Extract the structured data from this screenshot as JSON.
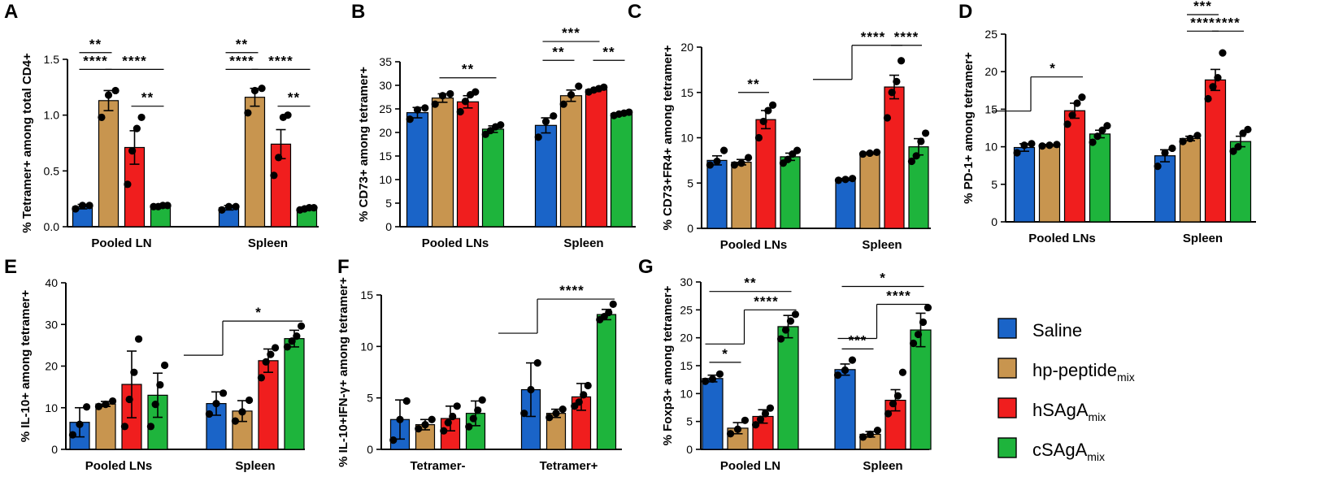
{
  "colors": {
    "Saline": "#1a64c8",
    "hp-peptide_mix": "#c8954f",
    "hSAgA_mix": "#f01e1e",
    "cSAgA_mix": "#1eb43c"
  },
  "legend": [
    {
      "name": "Saline",
      "main": "Saline",
      "sub": ""
    },
    {
      "name": "hp-peptide_mix",
      "main": "hp-peptide",
      "sub": "mix"
    },
    {
      "name": "hSAgA_mix",
      "main": "hSAgA",
      "sub": "mix"
    },
    {
      "name": "cSAgA_mix",
      "main": "cSAgA",
      "sub": "mix"
    }
  ],
  "chart_data": [
    {
      "panel": "A",
      "type": "bar",
      "ylabel": "% Tetramer+ among total CD4+",
      "ylim": [
        0,
        1.5
      ],
      "yticks": [
        0.0,
        0.5,
        1.0,
        1.5
      ],
      "ytick_labels": [
        "0.0",
        "0.5",
        "1.0",
        "1.5"
      ],
      "groups": [
        "Pooled LN",
        "Spleen"
      ],
      "series": [
        {
          "name": "Saline",
          "values": [
            0.18,
            0.17
          ],
          "errors": [
            0.02,
            0.02
          ],
          "points": [
            [
              0.16,
              0.19,
              0.19
            ],
            [
              0.15,
              0.18,
              0.18
            ]
          ]
        },
        {
          "name": "hp-peptide_mix",
          "values": [
            1.13,
            1.16
          ],
          "errors": [
            0.09,
            0.08
          ],
          "points": [
            [
              0.98,
              1.18,
              1.22
            ],
            [
              1.02,
              1.22,
              1.24
            ]
          ]
        },
        {
          "name": "hSAgA_mix",
          "values": [
            0.71,
            0.74
          ],
          "errors": [
            0.15,
            0.13
          ],
          "points": [
            [
              0.38,
              0.68,
              0.88,
              0.98
            ],
            [
              0.46,
              0.62,
              0.98,
              1.0
            ]
          ]
        },
        {
          "name": "cSAgA_mix",
          "values": [
            0.18,
            0.16
          ],
          "errors": [
            0.01,
            0.01
          ],
          "points": [
            [
              0.18,
              0.18,
              0.19,
              0.19
            ],
            [
              0.15,
              0.16,
              0.17,
              0.17
            ]
          ]
        }
      ],
      "significance": [
        {
          "label": "**",
          "group": 0,
          "from": 0,
          "to": 1,
          "y": 1.56
        },
        {
          "label": "****",
          "group": 0,
          "from": 0,
          "to": 1,
          "y": 1.41
        },
        {
          "label": "****",
          "group": 0,
          "from": 1,
          "to": 3,
          "y": 1.41
        },
        {
          "label": "**",
          "group": 0,
          "from": 2,
          "to": 3,
          "y": 1.08
        },
        {
          "label": "**",
          "group": 1,
          "from": 0,
          "to": 1,
          "y": 1.56
        },
        {
          "label": "****",
          "group": 1,
          "from": 0,
          "to": 1,
          "y": 1.41
        },
        {
          "label": "****",
          "group": 1,
          "from": 1,
          "to": 3,
          "y": 1.41
        },
        {
          "label": "**",
          "group": 1,
          "from": 2,
          "to": 3,
          "y": 1.08
        }
      ]
    },
    {
      "panel": "B",
      "type": "bar",
      "ylabel": "% CD73+ among tetramer+",
      "ylim": [
        0,
        35
      ],
      "yticks": [
        0,
        5,
        10,
        15,
        20,
        25,
        30,
        35
      ],
      "ytick_labels": [
        "0",
        "5",
        "10",
        "15",
        "20",
        "25",
        "30",
        "35"
      ],
      "groups": [
        "Pooled LNs",
        "Spleen"
      ],
      "series": [
        {
          "name": "Saline",
          "values": [
            24.2,
            21.5
          ],
          "errors": [
            1.1,
            1.6
          ],
          "points": [
            [
              22.8,
              24.8,
              25.2
            ],
            [
              19.0,
              22.3,
              23.5
            ]
          ]
        },
        {
          "name": "hp-peptide_mix",
          "values": [
            27.3,
            27.8
          ],
          "errors": [
            0.9,
            1.2
          ],
          "points": [
            [
              26.0,
              27.8,
              28.2
            ],
            [
              26.0,
              28.0,
              29.8
            ]
          ]
        },
        {
          "name": "hSAgA_mix",
          "values": [
            26.5,
            29.1
          ],
          "errors": [
            1.3,
            0.4
          ],
          "points": [
            [
              24.4,
              26.6,
              28.0,
              28.6
            ],
            [
              28.6,
              29.0,
              29.3,
              29.6
            ]
          ]
        },
        {
          "name": "cSAgA_mix",
          "values": [
            20.7,
            24.0
          ],
          "errors": [
            0.7,
            0.3
          ],
          "points": [
            [
              19.6,
              20.4,
              21.2,
              21.6
            ],
            [
              23.6,
              23.9,
              24.1,
              24.3
            ]
          ]
        }
      ],
      "significance": [
        {
          "label": "**",
          "group": 0,
          "from": 1,
          "to": 3,
          "y": 31.6
        },
        {
          "label": "***",
          "group": 1,
          "from": 0,
          "to": 2,
          "y": 39.3
        },
        {
          "label": "**",
          "group": 1,
          "from": 0,
          "to": 1,
          "y": 35.3
        },
        {
          "label": "**",
          "group": 1,
          "from": 2,
          "to": 3,
          "y": 35.3
        }
      ]
    },
    {
      "panel": "C",
      "type": "bar",
      "ylabel": "% CD73+FR4+ among tetramer+",
      "ylim": [
        0,
        20
      ],
      "yticks": [
        0,
        5,
        10,
        15,
        20
      ],
      "ytick_labels": [
        "0",
        "5",
        "10",
        "15",
        "20"
      ],
      "groups": [
        "Pooled LNs",
        "Spleen"
      ],
      "series": [
        {
          "name": "Saline",
          "values": [
            7.5,
            5.4
          ],
          "errors": [
            0.5,
            0.1
          ],
          "points": [
            [
              7.0,
              7.4,
              8.6
            ],
            [
              5.3,
              5.4,
              5.5
            ]
          ]
        },
        {
          "name": "hp-peptide_mix",
          "values": [
            7.3,
            8.3
          ],
          "errors": [
            0.3,
            0.1
          ],
          "points": [
            [
              7.0,
              7.2,
              7.8
            ],
            [
              8.2,
              8.3,
              8.4
            ]
          ]
        },
        {
          "name": "hSAgA_mix",
          "values": [
            12.0,
            15.6
          ],
          "errors": [
            1.0,
            1.3
          ],
          "points": [
            [
              10.0,
              11.8,
              13.0,
              13.6
            ],
            [
              12.2,
              15.0,
              16.2,
              18.5
            ]
          ]
        },
        {
          "name": "cSAgA_mix",
          "values": [
            7.9,
            9.0
          ],
          "errors": [
            0.4,
            0.9
          ],
          "points": [
            [
              7.2,
              7.6,
              8.2,
              8.6
            ],
            [
              7.4,
              8.0,
              9.6,
              10.5
            ]
          ]
        }
      ],
      "significance": [
        {
          "label": "**",
          "group": 0,
          "from": 1,
          "to": 2,
          "y": 15.0
        },
        {
          "label": "****",
          "group": 1,
          "from": 0,
          "to": 2,
          "y": 20.2,
          "style": "bracket"
        },
        {
          "label": "****",
          "group": 1,
          "from": 2,
          "to": 3,
          "y": 20.2
        }
      ]
    },
    {
      "panel": "D",
      "type": "bar",
      "ylabel": "% PD-1+ among tetramer+",
      "ylim": [
        0,
        25
      ],
      "yticks": [
        0,
        5,
        10,
        15,
        20,
        25
      ],
      "ytick_labels": [
        "0",
        "5",
        "10",
        "15",
        "20",
        "25"
      ],
      "groups": [
        "Pooled LNs",
        "Spleen"
      ],
      "series": [
        {
          "name": "Saline",
          "values": [
            9.9,
            8.8
          ],
          "errors": [
            0.5,
            0.8
          ],
          "points": [
            [
              9.2,
              10.2,
              10.4
            ],
            [
              7.4,
              9.2,
              9.8
            ]
          ]
        },
        {
          "name": "hp-peptide_mix",
          "values": [
            10.2,
            11.1
          ],
          "errors": [
            0.1,
            0.3
          ],
          "points": [
            [
              10.1,
              10.2,
              10.3
            ],
            [
              10.7,
              11.1,
              11.5
            ]
          ]
        },
        {
          "name": "hSAgA_mix",
          "values": [
            14.8,
            18.9
          ],
          "errors": [
            1.0,
            1.4
          ],
          "points": [
            [
              13.0,
              14.2,
              15.8,
              16.6
            ],
            [
              16.4,
              18.0,
              19.2,
              22.5
            ]
          ]
        },
        {
          "name": "cSAgA_mix",
          "values": [
            11.7,
            10.7
          ],
          "errors": [
            0.5,
            0.7
          ],
          "points": [
            [
              10.6,
              11.4,
              12.2,
              12.8
            ],
            [
              9.4,
              10.0,
              11.8,
              12.3
            ]
          ]
        }
      ],
      "significance": [
        {
          "label": "*",
          "group": 0,
          "from": 0,
          "to": 2,
          "y": 19.3,
          "style": "bracket"
        },
        {
          "label": "***",
          "group": 1,
          "from": 1,
          "to": 2,
          "y": 27.6
        },
        {
          "label": "****",
          "group": 1,
          "from": 1,
          "to": 2,
          "y": 25.4
        },
        {
          "label": "****",
          "group": 1,
          "from": 2,
          "to": 3,
          "y": 25.4
        }
      ]
    },
    {
      "panel": "E",
      "type": "bar",
      "ylabel": "% IL-10+ among tetramer+",
      "ylim": [
        0,
        40
      ],
      "yticks": [
        0,
        10,
        20,
        30,
        40
      ],
      "ytick_labels": [
        "0",
        "10",
        "20",
        "30",
        "40"
      ],
      "groups": [
        "Pooled LNs",
        "Spleen"
      ],
      "series": [
        {
          "name": "Saline",
          "values": [
            6.5,
            11.0
          ],
          "errors": [
            3.5,
            2.8
          ],
          "points": [
            [
              3.5,
              6.0,
              10.2
            ],
            [
              8.5,
              11.0,
              13.5
            ]
          ]
        },
        {
          "name": "hp-peptide_mix",
          "values": [
            10.9,
            9.2
          ],
          "errors": [
            0.6,
            2.5
          ],
          "points": [
            [
              10.3,
              10.8,
              11.6
            ],
            [
              6.8,
              9.0,
              11.8
            ]
          ]
        },
        {
          "name": "hSAgA_mix",
          "values": [
            15.6,
            21.3
          ],
          "errors": [
            8.0,
            2.8
          ],
          "points": [
            [
              5.5,
              12.0,
              18.5,
              26.5
            ],
            [
              17.2,
              21.0,
              22.8,
              24.4
            ]
          ]
        },
        {
          "name": "cSAgA_mix",
          "values": [
            13.0,
            26.6
          ],
          "errors": [
            5.3,
            2.0
          ],
          "points": [
            [
              5.5,
              10.8,
              15.5,
              20.2
            ],
            [
              24.6,
              26.0,
              27.2,
              29.6
            ]
          ]
        }
      ],
      "significance": [
        {
          "label": "*",
          "group": 1,
          "from": 0,
          "to": 3,
          "y": 30.8,
          "style": "bracket"
        }
      ]
    },
    {
      "panel": "F",
      "type": "bar",
      "ylabel": "% IL-10+IFN-γ+ among tetramer+",
      "ylim": [
        0,
        15
      ],
      "yticks": [
        0,
        5,
        10,
        15
      ],
      "ytick_labels": [
        "0",
        "5",
        "10",
        "15"
      ],
      "groups": [
        "Tetramer-",
        "Tetramer+"
      ],
      "series": [
        {
          "name": "Saline",
          "values": [
            2.9,
            5.8
          ],
          "errors": [
            1.9,
            2.6
          ],
          "points": [
            [
              0.9,
              2.9,
              4.7
            ],
            [
              3.5,
              5.8,
              8.4
            ]
          ]
        },
        {
          "name": "hp-peptide_mix",
          "values": [
            2.4,
            3.5
          ],
          "errors": [
            0.5,
            0.4
          ],
          "points": [
            [
              2.0,
              2.4,
              2.9
            ],
            [
              3.1,
              3.5,
              3.9
            ]
          ]
        },
        {
          "name": "hSAgA_mix",
          "values": [
            3.0,
            5.1
          ],
          "errors": [
            1.2,
            1.3
          ],
          "points": [
            [
              1.8,
              2.6,
              3.2,
              4.2
            ],
            [
              4.2,
              4.6,
              5.3,
              6.2
            ]
          ]
        },
        {
          "name": "cSAgA_mix",
          "values": [
            3.5,
            13.1
          ],
          "errors": [
            1.2,
            0.5
          ],
          "points": [
            [
              2.2,
              3.0,
              3.8,
              4.8
            ],
            [
              12.6,
              12.9,
              13.3,
              14.1
            ]
          ]
        }
      ],
      "significance": [
        {
          "label": "****",
          "group": 1,
          "from": 0,
          "to": 3,
          "y": 14.6,
          "style": "bracket"
        }
      ]
    },
    {
      "panel": "G",
      "type": "bar",
      "ylabel": "% Foxp3+ among tetramer+",
      "ylim": [
        0,
        30
      ],
      "yticks": [
        0,
        5,
        10,
        15,
        20,
        25,
        30
      ],
      "ytick_labels": [
        "0",
        "5",
        "10",
        "15",
        "20",
        "25",
        "30"
      ],
      "groups": [
        "Pooled LN",
        "Spleen"
      ],
      "series": [
        {
          "name": "Saline",
          "values": [
            12.7,
            14.3
          ],
          "errors": [
            0.6,
            1.0
          ],
          "points": [
            [
              12.2,
              12.6,
              13.5
            ],
            [
              13.3,
              14.2,
              16.0
            ]
          ]
        },
        {
          "name": "hp-peptide_mix",
          "values": [
            3.8,
            2.7
          ],
          "errors": [
            1.0,
            0.5
          ],
          "points": [
            [
              2.8,
              3.6,
              5.2
            ],
            [
              2.2,
              2.7,
              3.4
            ]
          ]
        },
        {
          "name": "hSAgA_mix",
          "values": [
            5.9,
            8.8
          ],
          "errors": [
            1.2,
            1.9
          ],
          "points": [
            [
              4.4,
              5.4,
              6.4,
              7.4
            ],
            [
              6.4,
              8.2,
              9.6,
              13.8
            ]
          ]
        },
        {
          "name": "cSAgA_mix",
          "values": [
            22.0,
            21.4
          ],
          "errors": [
            2.0,
            3.0
          ],
          "points": [
            [
              19.8,
              21.4,
              23.0,
              24.2
            ],
            [
              19.0,
              20.6,
              22.8,
              25.4
            ]
          ]
        }
      ],
      "significance": [
        {
          "label": "**",
          "group": 0,
          "from": 0,
          "to": 3,
          "y": 28.3
        },
        {
          "label": "****",
          "group": 0,
          "from": 1,
          "to": 3,
          "y": 25.0,
          "style": "bracket"
        },
        {
          "label": "*",
          "group": 0,
          "from": 0,
          "to": 1,
          "y": 15.6
        },
        {
          "label": "*",
          "group": 1,
          "from": 0,
          "to": 3,
          "y": 29.2
        },
        {
          "label": "****",
          "group": 1,
          "from": 1,
          "to": 3,
          "y": 26.0,
          "style": "bracket"
        },
        {
          "label": "***",
          "group": 1,
          "from": 0,
          "to": 1,
          "y": 18.0
        }
      ]
    }
  ]
}
